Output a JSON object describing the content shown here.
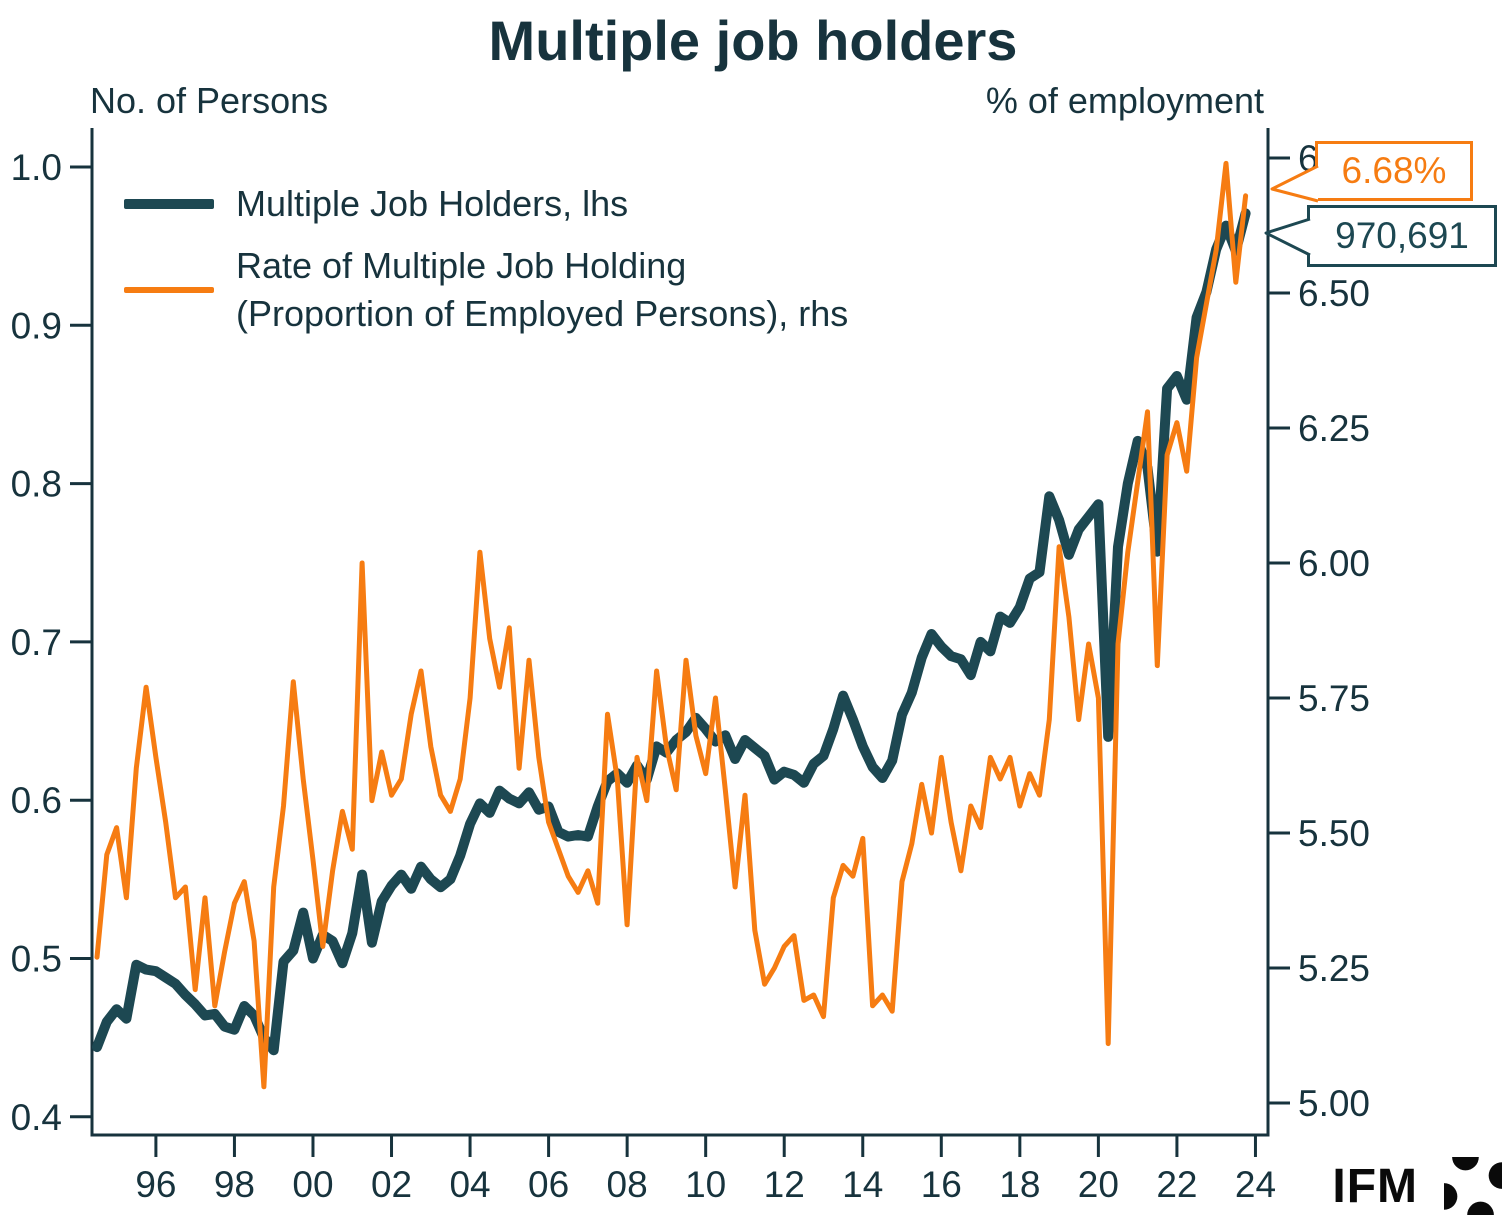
{
  "header": {
    "title": "Multiple job holders",
    "left_axis_label": "No. of Persons",
    "right_axis_label": "% of employment"
  },
  "legend": [
    {
      "label": "Multiple Job Holders, lhs",
      "color": "#1d4852"
    },
    {
      "label": "Rate of Multiple Job Holding",
      "label2": "(Proportion of Employed Persons), rhs",
      "color": "#f67c12"
    }
  ],
  "callouts": {
    "rate": {
      "text": "6.68%",
      "color": "#f67c12"
    },
    "count": {
      "text": "970,691",
      "color": "#1d4852"
    }
  },
  "watermark": {
    "text": "IFM",
    "icon": "ifm-pinwheel-logo"
  },
  "colors": {
    "ink": "#17333d",
    "teal_series": "#1d4852",
    "orange_series": "#f67c12"
  },
  "chart_data": {
    "type": "line",
    "title": "Multiple job holders",
    "x_start": 1994.5,
    "x_step_years": 0.25,
    "grid": false,
    "legend_position": "top-left",
    "x_ticks": {
      "years": [
        1996,
        1998,
        2000,
        2002,
        2004,
        2006,
        2008,
        2010,
        2012,
        2014,
        2016,
        2018,
        2020,
        2022,
        2024
      ],
      "labels": [
        "96",
        "98",
        "00",
        "02",
        "04",
        "06",
        "08",
        "10",
        "12",
        "14",
        "16",
        "18",
        "20",
        "22",
        "24"
      ]
    },
    "left_axis": {
      "label": "No. of Persons",
      "range": [
        0.4,
        1.0
      ],
      "tick_values": [
        1.0,
        0.9,
        0.8,
        0.7,
        0.6,
        0.5,
        0.4
      ],
      "tick_labels": [
        "1.0",
        "0.9",
        "0.8",
        "0.7",
        "0.6",
        "0.5",
        "0.4"
      ]
    },
    "right_axis": {
      "label": "% of employment",
      "range": [
        5.0,
        6.75
      ],
      "tick_values": [
        6.75,
        6.5,
        6.25,
        6.0,
        5.75,
        5.5,
        5.25,
        5.0
      ],
      "tick_labels": [
        "6.75",
        "6.50",
        "6.25",
        "6.00",
        "5.75",
        "5.50",
        "5.25",
        "5.00"
      ]
    },
    "series": [
      {
        "name": "Multiple Job Holders, lhs",
        "axis": "left",
        "color": "#1d4852",
        "stroke_width": 10,
        "end_label": "970,691",
        "values": [
          0.444,
          0.46,
          0.468,
          0.462,
          0.496,
          0.493,
          0.492,
          0.488,
          0.484,
          0.477,
          0.471,
          0.464,
          0.465,
          0.457,
          0.455,
          0.47,
          0.464,
          0.45,
          0.442,
          0.498,
          0.505,
          0.529,
          0.5,
          0.515,
          0.511,
          0.497,
          0.516,
          0.553,
          0.51,
          0.536,
          0.546,
          0.553,
          0.544,
          0.558,
          0.55,
          0.545,
          0.55,
          0.565,
          0.585,
          0.598,
          0.592,
          0.606,
          0.601,
          0.598,
          0.605,
          0.594,
          0.596,
          0.58,
          0.577,
          0.578,
          0.577,
          0.596,
          0.612,
          0.617,
          0.611,
          0.622,
          0.613,
          0.634,
          0.63,
          0.638,
          0.643,
          0.652,
          0.645,
          0.637,
          0.641,
          0.626,
          0.638,
          0.633,
          0.628,
          0.613,
          0.618,
          0.616,
          0.611,
          0.623,
          0.628,
          0.645,
          0.666,
          0.651,
          0.634,
          0.621,
          0.614,
          0.625,
          0.654,
          0.668,
          0.69,
          0.705,
          0.697,
          0.691,
          0.689,
          0.679,
          0.7,
          0.694,
          0.716,
          0.712,
          0.722,
          0.74,
          0.744,
          0.792,
          0.777,
          0.755,
          0.771,
          0.779,
          0.787,
          0.64,
          0.76,
          0.8,
          0.827,
          0.81,
          0.757,
          0.86,
          0.868,
          0.853,
          0.905,
          0.921,
          0.948,
          0.963,
          0.947,
          0.9707
        ]
      },
      {
        "name": "Rate of Multiple Job Holding (Proportion of Employed Persons), rhs",
        "axis": "right",
        "color": "#f67c12",
        "stroke_width": 5,
        "end_label": "6.68%",
        "values": [
          5.27,
          5.46,
          5.51,
          5.38,
          5.62,
          5.77,
          5.64,
          5.52,
          5.38,
          5.4,
          5.21,
          5.38,
          5.18,
          5.28,
          5.37,
          5.41,
          5.3,
          5.03,
          5.4,
          5.55,
          5.78,
          5.6,
          5.45,
          5.29,
          5.43,
          5.54,
          5.47,
          6.0,
          5.56,
          5.65,
          5.57,
          5.6,
          5.72,
          5.8,
          5.66,
          5.57,
          5.54,
          5.6,
          5.75,
          6.02,
          5.86,
          5.77,
          5.88,
          5.62,
          5.82,
          5.64,
          5.52,
          5.47,
          5.42,
          5.39,
          5.43,
          5.37,
          5.72,
          5.6,
          5.33,
          5.64,
          5.56,
          5.8,
          5.66,
          5.58,
          5.82,
          5.68,
          5.61,
          5.75,
          5.58,
          5.4,
          5.57,
          5.32,
          5.22,
          5.25,
          5.29,
          5.31,
          5.19,
          5.2,
          5.16,
          5.38,
          5.44,
          5.42,
          5.49,
          5.18,
          5.2,
          5.17,
          5.41,
          5.48,
          5.59,
          5.5,
          5.64,
          5.52,
          5.43,
          5.55,
          5.51,
          5.64,
          5.6,
          5.64,
          5.55,
          5.61,
          5.57,
          5.71,
          6.03,
          5.9,
          5.71,
          5.85,
          5.75,
          5.11,
          5.85,
          6.02,
          6.15,
          6.28,
          5.81,
          6.2,
          6.26,
          6.17,
          6.38,
          6.48,
          6.58,
          6.74,
          6.52,
          6.68
        ]
      }
    ]
  }
}
